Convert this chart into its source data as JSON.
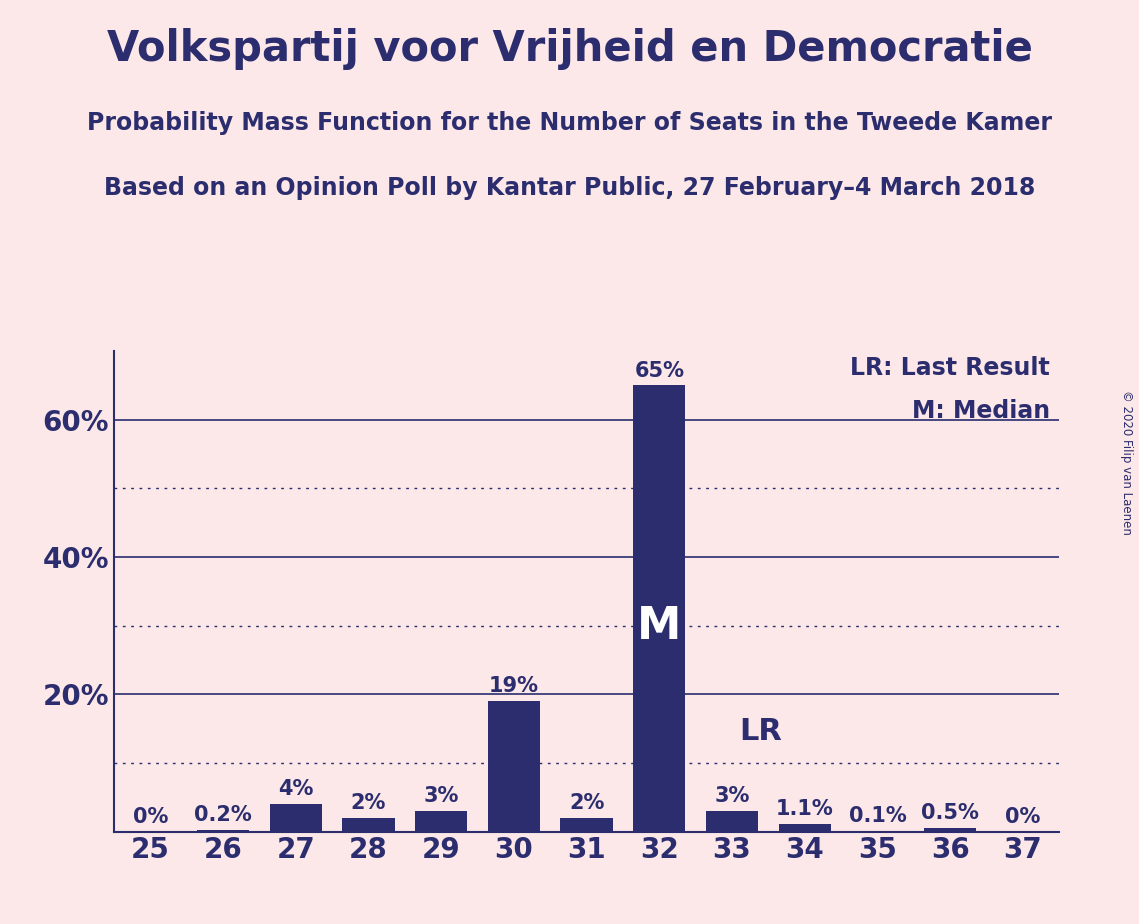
{
  "title": "Volkspartij voor Vrijheid en Democratie",
  "subtitle1": "Probability Mass Function for the Number of Seats in the Tweede Kamer",
  "subtitle2": "Based on an Opinion Poll by Kantar Public, 27 February–4 March 2018",
  "copyright": "© 2020 Filip van Laenen",
  "seats": [
    25,
    26,
    27,
    28,
    29,
    30,
    31,
    32,
    33,
    34,
    35,
    36,
    37
  ],
  "values": [
    0.0,
    0.2,
    4.0,
    2.0,
    3.0,
    19.0,
    2.0,
    65.0,
    3.0,
    1.1,
    0.1,
    0.5,
    0.0
  ],
  "labels": [
    "0%",
    "0.2%",
    "4%",
    "2%",
    "3%",
    "19%",
    "2%",
    "65%",
    "3%",
    "1.1%",
    "0.1%",
    "0.5%",
    "0%"
  ],
  "bar_color": "#2b2d6e",
  "background_color": "#fce8e8",
  "ylim": [
    0,
    70
  ],
  "solid_yticks": [
    20,
    40,
    60
  ],
  "dotted_yticks": [
    10,
    30,
    50
  ],
  "median_seat": 32,
  "lr_seat": 33,
  "lr_label": "LR",
  "median_label": "M",
  "legend_lr": "LR: Last Result",
  "legend_m": "M: Median",
  "title_fontsize": 30,
  "subtitle_fontsize": 17,
  "label_fontsize": 15,
  "tick_fontsize": 20,
  "ytick_label_fontsize": 20,
  "legend_fontsize": 17,
  "median_fontsize": 32,
  "lr_fontsize": 22
}
